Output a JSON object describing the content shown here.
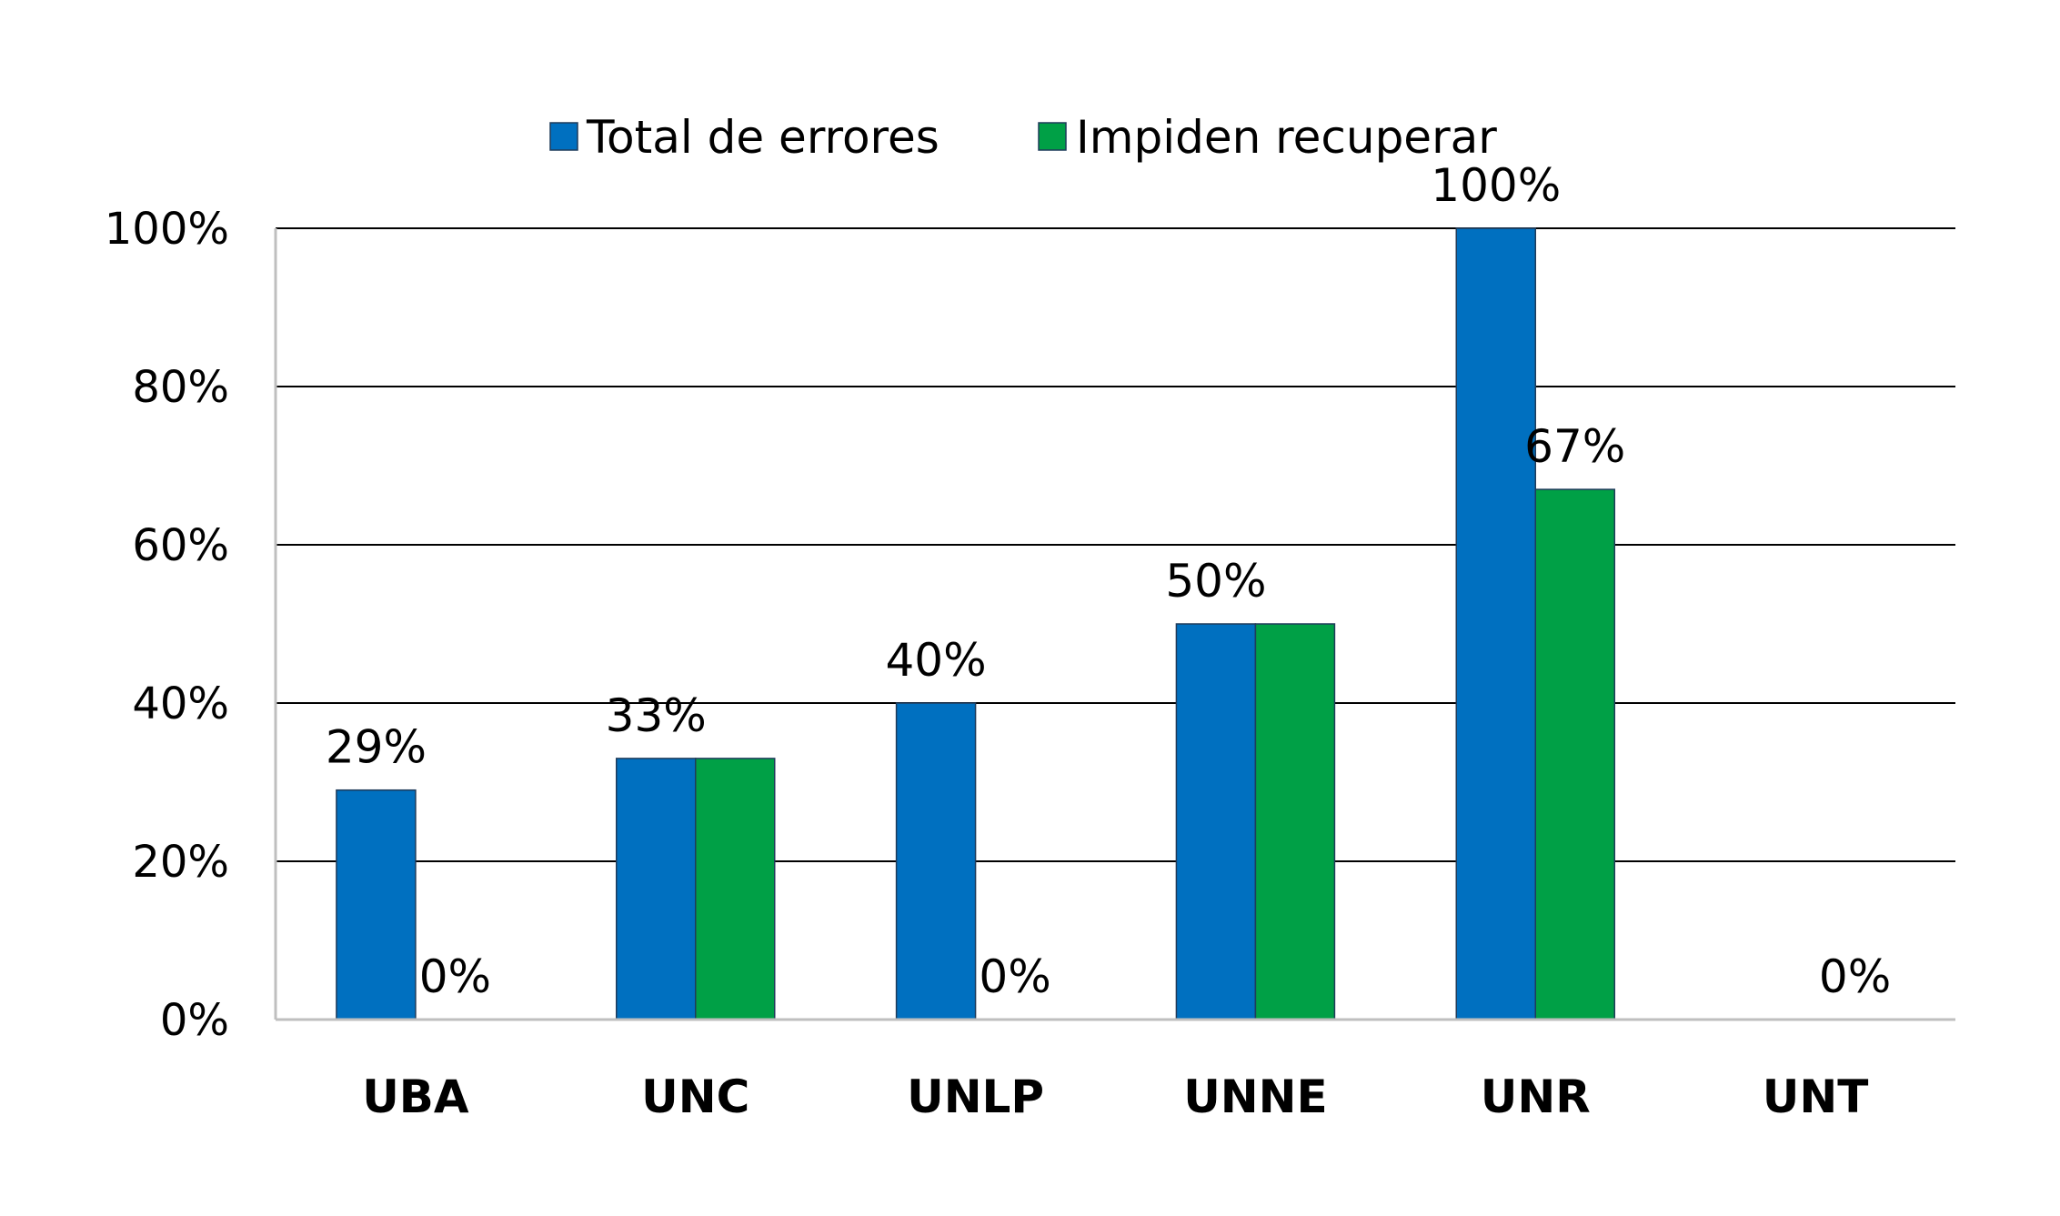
{
  "chart_data": {
    "type": "bar",
    "categories": [
      "UBA",
      "UNC",
      "UNLP",
      "UNNE",
      "UNR",
      "UNT"
    ],
    "series": [
      {
        "name": "Total de errores",
        "color": "#0070C0",
        "values": [
          29,
          33,
          40,
          50,
          100,
          null
        ],
        "labels": [
          "29%",
          "33%",
          "40%",
          "50%",
          "100%",
          ""
        ]
      },
      {
        "name": "Impiden recuperar",
        "color": "#00A046",
        "values": [
          0,
          33,
          0,
          50,
          67,
          0
        ],
        "labels": [
          "0%",
          "",
          "0%",
          "",
          "67%",
          "0%"
        ]
      }
    ],
    "yticks": [
      "0%",
      "20%",
      "40%",
      "60%",
      "80%",
      "100%"
    ],
    "ylim": [
      0,
      100
    ],
    "grid": true,
    "legend_position": "top"
  }
}
